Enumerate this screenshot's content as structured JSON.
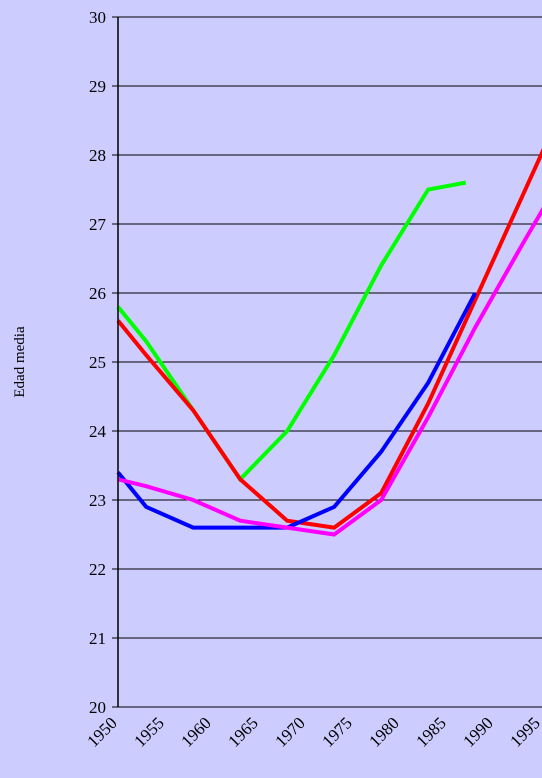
{
  "chart_data": {
    "type": "line",
    "title": "",
    "xlabel": "",
    "ylabel": "Edad media",
    "x_ticks": [
      "1950",
      "1955",
      "1960",
      "1965",
      "1970",
      "1975",
      "1980",
      "1985",
      "1990",
      "1995"
    ],
    "y_ticks": [
      "20",
      "21",
      "22",
      "23",
      "24",
      "25",
      "26",
      "27",
      "28",
      "29",
      "30"
    ],
    "xlim": [
      1950,
      1996
    ],
    "ylim": [
      20,
      30
    ],
    "grid": "horizontal",
    "legend": "none",
    "series": [
      {
        "color": "#00ff00",
        "x": [
          1950,
          1953,
          1958,
          1963,
          1968,
          1973,
          1978,
          1983,
          1987
        ],
        "y": [
          25.8,
          25.3,
          24.3,
          23.3,
          24.0,
          25.1,
          26.4,
          27.5,
          27.6
        ]
      },
      {
        "color": "#ff0000",
        "x": [
          1950,
          1953,
          1958,
          1963,
          1968,
          1973,
          1978,
          1983,
          1988,
          1993,
          1996
        ],
        "y": [
          25.6,
          25.1,
          24.3,
          23.3,
          22.7,
          22.6,
          23.1,
          24.4,
          25.9,
          27.4,
          28.3
        ]
      },
      {
        "color": "#0000ff",
        "x": [
          1950,
          1953,
          1958,
          1963,
          1968,
          1973,
          1978,
          1983,
          1988
        ],
        "y": [
          23.4,
          22.9,
          22.6,
          22.6,
          22.6,
          22.9,
          23.7,
          24.7,
          26.0
        ]
      },
      {
        "color": "#ff00ff",
        "x": [
          1950,
          1953,
          1958,
          1963,
          1968,
          1973,
          1978,
          1983,
          1988,
          1993,
          1996
        ],
        "y": [
          23.3,
          23.2,
          23.0,
          22.7,
          22.6,
          22.5,
          23.0,
          24.2,
          25.5,
          26.7,
          27.4
        ]
      }
    ]
  }
}
